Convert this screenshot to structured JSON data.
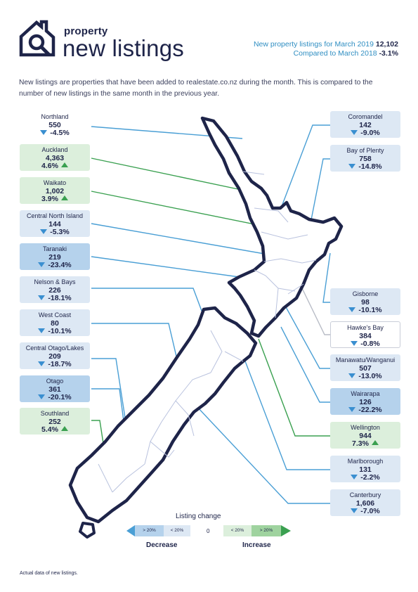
{
  "header": {
    "brand_small": "property",
    "brand_big": "new listings",
    "summary_line1_label": "New property listings for March 2019",
    "summary_line1_value": "12,102",
    "summary_line2_label": "Compared to March 2018",
    "summary_line2_value": "-3.1%"
  },
  "intro": "New listings are properties that have been added to realestate.co.nz during the month. This is compared to the number of new listings in the same month in the previous year.",
  "regions": [
    {
      "name": "Northland",
      "value": "550",
      "change": "-4.5%",
      "direction": "down",
      "band": "dec"
    },
    {
      "name": "Auckland",
      "value": "4,363",
      "change": "4.6%",
      "direction": "up",
      "band": "inc"
    },
    {
      "name": "Waikato",
      "value": "1,002",
      "change": "3.9%",
      "direction": "up",
      "band": "inc"
    },
    {
      "name": "Central North Island",
      "value": "144",
      "change": "-5.3%",
      "direction": "down",
      "band": "dec"
    },
    {
      "name": "Taranaki",
      "value": "219",
      "change": "-23.4%",
      "direction": "down",
      "band": "dec20"
    },
    {
      "name": "Nelson & Bays",
      "value": "226",
      "change": "-18.1%",
      "direction": "down",
      "band": "dec"
    },
    {
      "name": "West Coast",
      "value": "80",
      "change": "-10.1%",
      "direction": "down",
      "band": "dec"
    },
    {
      "name": "Central Otago/Lakes",
      "value": "209",
      "change": "-18.7%",
      "direction": "down",
      "band": "dec"
    },
    {
      "name": "Otago",
      "value": "361",
      "change": "-20.1%",
      "direction": "down",
      "band": "dec20"
    },
    {
      "name": "Southland",
      "value": "252",
      "change": "5.4%",
      "direction": "up",
      "band": "inc"
    },
    {
      "name": "Coromandel",
      "value": "142",
      "change": "-9.0%",
      "direction": "down",
      "band": "dec"
    },
    {
      "name": "Bay of Plenty",
      "value": "758",
      "change": "-14.8%",
      "direction": "down",
      "band": "dec"
    },
    {
      "name": "Gisborne",
      "value": "98",
      "change": "-10.1%",
      "direction": "down",
      "band": "dec"
    },
    {
      "name": "Hawke's Bay",
      "value": "384",
      "change": "-0.8%",
      "direction": "down",
      "band": "neu"
    },
    {
      "name": "Manawatu/Wanganui",
      "value": "507",
      "change": "-13.0%",
      "direction": "down",
      "band": "dec"
    },
    {
      "name": "Wairarapa",
      "value": "126",
      "change": "-22.2%",
      "direction": "down",
      "band": "dec20"
    },
    {
      "name": "Wellington",
      "value": "944",
      "change": "7.3%",
      "direction": "up",
      "band": "inc"
    },
    {
      "name": "Marlborough",
      "value": "131",
      "change": "-2.2%",
      "direction": "down",
      "band": "dec"
    },
    {
      "name": "Canterbury",
      "value": "1,606",
      "change": "-7.0%",
      "direction": "down",
      "band": "dec"
    }
  ],
  "legend": {
    "title": "Listing change",
    "dec_big": "> 20%",
    "dec_small": "< 20%",
    "zero": "0",
    "inc_small": "< 20%",
    "inc_big": "> 20%",
    "decrease_label": "Decrease",
    "increase_label": "Increase"
  },
  "colors": {
    "navy": "#1e2449",
    "decrease_light": "#dde8f4",
    "decrease_strong": "#b5d2ec",
    "increase_light": "#dcefdc",
    "increase_strong": "#9fd39f",
    "leader_decrease": "#4a9fd5",
    "leader_increase": "#3aa050",
    "leader_neutral": "#b8bcc6"
  },
  "footnote": "Actual data of new listings."
}
